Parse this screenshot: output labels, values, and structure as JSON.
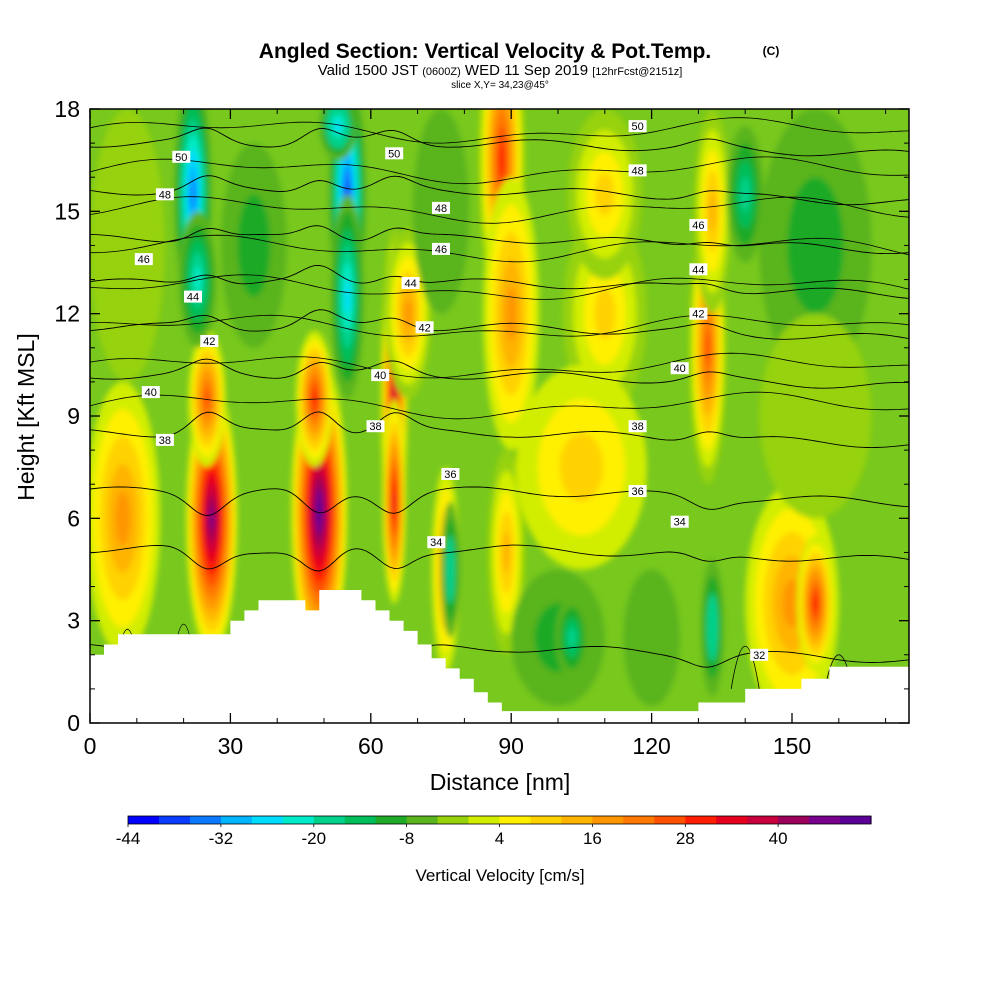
{
  "chart_data": {
    "type": "heatmap",
    "title": "Angled Section: Vertical Velocity & Pot.Temp.",
    "title_mark": "(C)",
    "subtitle": {
      "part1": "Valid 1500 JST",
      "part2": "(0600Z)",
      "part3": "WED 11 Sep 2019",
      "part4": "[12hrFcst@2151z]"
    },
    "slice_label": "slice X,Y= 34,23@45°",
    "xlabel": "Distance [nm]",
    "ylabel": "Height [Kft MSL]",
    "xlim": [
      0,
      175
    ],
    "ylim": [
      0,
      18
    ],
    "x_ticks": [
      0,
      30,
      60,
      90,
      120,
      150
    ],
    "y_ticks": [
      0,
      3,
      6,
      9,
      12,
      15,
      18
    ],
    "colorbar": {
      "label": "Vertical Velocity [cm/s]",
      "tick_labels": [
        "-44",
        "-32",
        "-20",
        "-8",
        "4",
        "16",
        "28",
        "40"
      ],
      "colors": [
        "#0000ff",
        "#0a3cff",
        "#0a78ff",
        "#00b4ff",
        "#00dcff",
        "#00ebc8",
        "#00d28c",
        "#00be5a",
        "#1eaa28",
        "#5ab41e",
        "#96d20a",
        "#d2ee00",
        "#fff000",
        "#ffd200",
        "#ffb400",
        "#ff9600",
        "#ff7800",
        "#ff5000",
        "#ff1e00",
        "#e6001e",
        "#c8003c",
        "#9b005a",
        "#78008c",
        "#5a0096"
      ]
    },
    "grid": false,
    "terrain_profile": [
      [
        0,
        2
      ],
      [
        3,
        2
      ],
      [
        3,
        2.3
      ],
      [
        6,
        2.3
      ],
      [
        6,
        2.6
      ],
      [
        9,
        2.6
      ],
      [
        9,
        2.6
      ],
      [
        18,
        2.6
      ],
      [
        18,
        2.6
      ],
      [
        30,
        2.6
      ],
      [
        30,
        3.0
      ],
      [
        33,
        3.0
      ],
      [
        33,
        3.3
      ],
      [
        36,
        3.3
      ],
      [
        36,
        3.6
      ],
      [
        46,
        3.6
      ],
      [
        46,
        3.3
      ],
      [
        49,
        3.3
      ],
      [
        49,
        3.9
      ],
      [
        52,
        3.9
      ],
      [
        52,
        3.9
      ],
      [
        58,
        3.9
      ],
      [
        58,
        3.6
      ],
      [
        61,
        3.6
      ],
      [
        61,
        3.3
      ],
      [
        64,
        3.3
      ],
      [
        64,
        3.0
      ],
      [
        67,
        3.0
      ],
      [
        67,
        2.7
      ],
      [
        70,
        2.7
      ],
      [
        70,
        2.3
      ],
      [
        73,
        2.3
      ],
      [
        73,
        1.9
      ],
      [
        76,
        1.9
      ],
      [
        76,
        1.6
      ],
      [
        79,
        1.6
      ],
      [
        79,
        1.3
      ],
      [
        82,
        1.3
      ],
      [
        82,
        0.9
      ],
      [
        85,
        0.9
      ],
      [
        85,
        0.6
      ],
      [
        88,
        0.6
      ],
      [
        88,
        0.35
      ],
      [
        130,
        0.35
      ],
      [
        130,
        0.6
      ],
      [
        140,
        0.6
      ],
      [
        140,
        1.0
      ],
      [
        152,
        1.0
      ],
      [
        152,
        1.3
      ],
      [
        158,
        1.3
      ],
      [
        158,
        1.65
      ],
      [
        175,
        1.65
      ]
    ],
    "velocity_cells": [
      {
        "x": 7,
        "y": 6,
        "rx": 8,
        "ry": 4,
        "v": 14
      },
      {
        "x": 26,
        "y": 6,
        "rx": 5.5,
        "ry": 4,
        "v": 42
      },
      {
        "x": 25,
        "y": 9.5,
        "rx": 4,
        "ry": 2,
        "v": 22
      },
      {
        "x": 49,
        "y": 6.2,
        "rx": 6,
        "ry": 4.5,
        "v": 46
      },
      {
        "x": 48,
        "y": 9.5,
        "rx": 4,
        "ry": 2,
        "v": 26
      },
      {
        "x": 65,
        "y": 9.5,
        "rx": 3,
        "ry": 5,
        "v": 36
      },
      {
        "x": 65,
        "y": 6.5,
        "rx": 2.5,
        "ry": 3,
        "v": 30
      },
      {
        "x": 68,
        "y": 12,
        "rx": 5,
        "ry": 2.5,
        "v": 16
      },
      {
        "x": 76,
        "y": 4.5,
        "rx": 3,
        "ry": 3,
        "v": 14
      },
      {
        "x": 88,
        "y": 16.5,
        "rx": 5,
        "ry": 4.5,
        "v": 28
      },
      {
        "x": 90,
        "y": 12,
        "rx": 6,
        "ry": 4,
        "v": 14
      },
      {
        "x": 89,
        "y": 5,
        "rx": 4,
        "ry": 3,
        "v": 12
      },
      {
        "x": 110,
        "y": 12,
        "rx": 9,
        "ry": 3,
        "v": 8
      },
      {
        "x": 105,
        "y": 7.5,
        "rx": 14,
        "ry": 3,
        "v": 6
      },
      {
        "x": 132,
        "y": 11,
        "rx": 4,
        "ry": 4,
        "v": 24
      },
      {
        "x": 133,
        "y": 15,
        "rx": 4,
        "ry": 3,
        "v": 12
      },
      {
        "x": 150,
        "y": 3.5,
        "rx": 10,
        "ry": 3.5,
        "v": 14
      },
      {
        "x": 155,
        "y": 3.5,
        "rx": 4,
        "ry": 2,
        "v": 26
      },
      {
        "x": 110,
        "y": 15.5,
        "rx": 8,
        "ry": 2.5,
        "v": 8
      },
      {
        "x": 22,
        "y": 15.5,
        "rx": 4,
        "ry": 3.5,
        "v": -36
      },
      {
        "x": 23,
        "y": 13,
        "rx": 4,
        "ry": 2,
        "v": -24
      },
      {
        "x": 55,
        "y": 15.5,
        "rx": 4,
        "ry": 3.5,
        "v": -40
      },
      {
        "x": 55,
        "y": 12.5,
        "rx": 3.5,
        "ry": 3,
        "v": -28
      },
      {
        "x": 53,
        "y": 17.5,
        "rx": 4,
        "ry": 1,
        "v": -30
      },
      {
        "x": 35,
        "y": 14,
        "rx": 7,
        "ry": 3,
        "v": -14
      },
      {
        "x": 77,
        "y": 4.5,
        "rx": 2,
        "ry": 2,
        "v": -22
      },
      {
        "x": 100,
        "y": 2.5,
        "rx": 10,
        "ry": 2,
        "v": -14
      },
      {
        "x": 103,
        "y": 2.5,
        "rx": 3.5,
        "ry": 1.2,
        "v": -20
      },
      {
        "x": 133,
        "y": 2.8,
        "rx": 2.5,
        "ry": 2,
        "v": -22
      },
      {
        "x": 155,
        "y": 14,
        "rx": 12,
        "ry": 4,
        "v": -12
      },
      {
        "x": 140,
        "y": 15.5,
        "rx": 4,
        "ry": 2,
        "v": -20
      },
      {
        "x": 155,
        "y": 9,
        "rx": 12,
        "ry": 3,
        "v": -6
      },
      {
        "x": 8,
        "y": 14,
        "rx": 8,
        "ry": 4,
        "v": -4
      },
      {
        "x": 75,
        "y": 15,
        "rx": 6,
        "ry": 3,
        "v": -8
      },
      {
        "x": 120,
        "y": 2.5,
        "rx": 6,
        "ry": 2,
        "v": -8
      }
    ],
    "theta_lines": [
      {
        "level": "32",
        "y": 2.2
      },
      {
        "level": "34",
        "y": 5.1
      },
      {
        "level": "36",
        "y": 6.8
      },
      {
        "level": "38",
        "y": 8.5
      },
      {
        "level": "40",
        "y": 10.2
      },
      {
        "level": "42",
        "y": 11.6
      },
      {
        "level": "44",
        "y": 12.9
      },
      {
        "level": "46",
        "y": 14.2
      },
      {
        "level": "48",
        "y": 15.6
      },
      {
        "level": "50",
        "y": 17.0
      }
    ],
    "theta_labels": [
      {
        "text": "50",
        "x": 19.5,
        "y": 16.6
      },
      {
        "text": "48",
        "x": 16,
        "y": 15.5
      },
      {
        "text": "46",
        "x": 11.5,
        "y": 13.6
      },
      {
        "text": "44",
        "x": 22,
        "y": 12.5
      },
      {
        "text": "42",
        "x": 25.5,
        "y": 11.2
      },
      {
        "text": "40",
        "x": 13,
        "y": 9.7
      },
      {
        "text": "38",
        "x": 16,
        "y": 8.3
      },
      {
        "text": "50",
        "x": 65,
        "y": 16.7
      },
      {
        "text": "48",
        "x": 75,
        "y": 15.1
      },
      {
        "text": "46",
        "x": 75,
        "y": 13.9
      },
      {
        "text": "44",
        "x": 68.5,
        "y": 12.9
      },
      {
        "text": "42",
        "x": 71.5,
        "y": 11.6
      },
      {
        "text": "40",
        "x": 62,
        "y": 10.2
      },
      {
        "text": "38",
        "x": 61,
        "y": 8.7
      },
      {
        "text": "36",
        "x": 77,
        "y": 7.3
      },
      {
        "text": "34",
        "x": 74,
        "y": 5.3
      },
      {
        "text": "50",
        "x": 117,
        "y": 17.5
      },
      {
        "text": "48",
        "x": 117,
        "y": 16.2
      },
      {
        "text": "46",
        "x": 130,
        "y": 14.6
      },
      {
        "text": "44",
        "x": 130,
        "y": 13.3
      },
      {
        "text": "42",
        "x": 130,
        "y": 12.0
      },
      {
        "text": "40",
        "x": 126,
        "y": 10.4
      },
      {
        "text": "38",
        "x": 117,
        "y": 8.7
      },
      {
        "text": "36",
        "x": 117,
        "y": 6.8
      },
      {
        "text": "34",
        "x": 126,
        "y": 5.9
      },
      {
        "text": "32",
        "x": 143,
        "y": 2.0
      }
    ]
  }
}
